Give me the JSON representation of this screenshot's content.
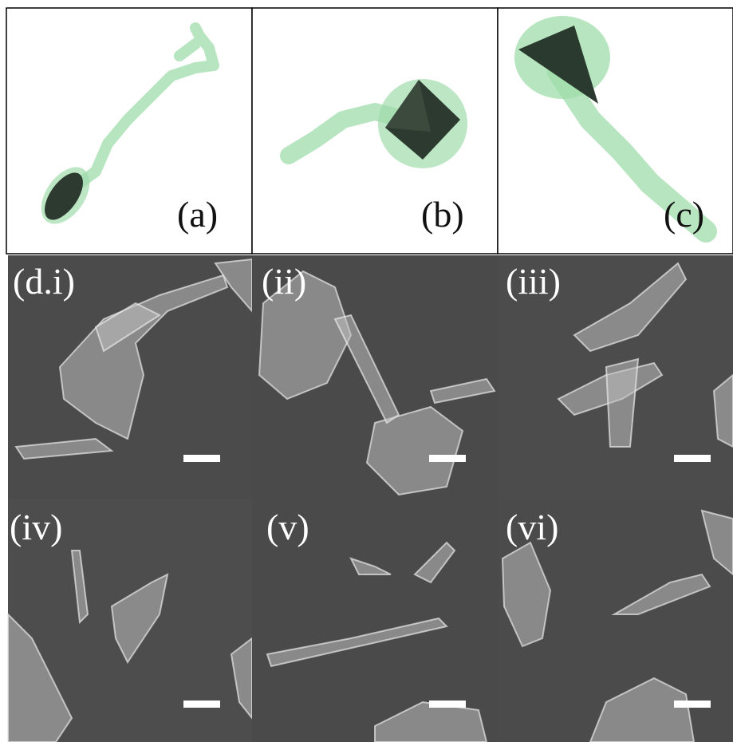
{
  "panels": [
    {
      "label": "(a)"
    },
    {
      "label": "(b)"
    },
    {
      "label": "(c)"
    },
    {
      "label": "(d.i)"
    },
    {
      "label": "(ii)"
    },
    {
      "label": "(iii)"
    },
    {
      "label": "(iv)"
    },
    {
      "label": "(v)"
    },
    {
      "label": "(vi)"
    }
  ]
}
